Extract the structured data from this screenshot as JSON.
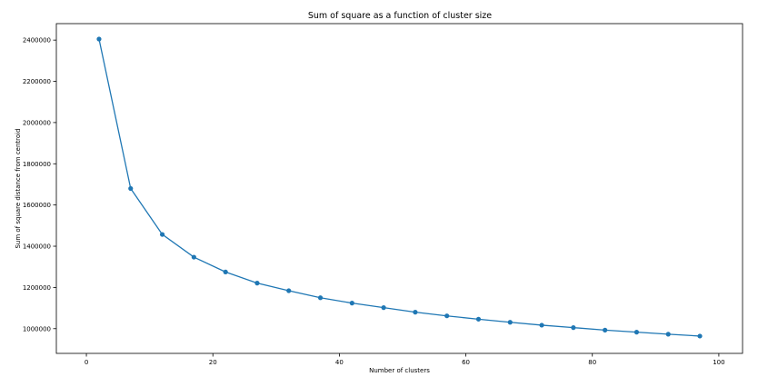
{
  "chart_data": {
    "type": "line",
    "title": "Sum of square as a function of cluster size",
    "xlabel": "Number of clusters",
    "ylabel": "Sum of square distance from centroid",
    "xlim": [
      -4.75,
      103.75
    ],
    "ylim": [
      880000,
      2480000
    ],
    "xticks": [
      0,
      20,
      40,
      60,
      80,
      100
    ],
    "yticks": [
      1000000,
      1200000,
      1400000,
      1600000,
      1800000,
      2000000,
      2200000,
      2400000
    ],
    "xtick_labels": [
      "0",
      "20",
      "40",
      "60",
      "80",
      "100"
    ],
    "ytick_labels": [
      "1000000",
      "1200000",
      "1400000",
      "1600000",
      "1800000",
      "2000000",
      "2200000",
      "2400000"
    ],
    "grid": false,
    "series_color": "#1f77b4",
    "marker": "circle",
    "x": [
      2,
      7,
      12,
      17,
      22,
      27,
      32,
      37,
      42,
      47,
      52,
      57,
      62,
      67,
      72,
      77,
      82,
      87,
      92,
      97
    ],
    "y": [
      2405000,
      1680000,
      1457000,
      1347000,
      1275000,
      1221000,
      1184000,
      1150000,
      1124000,
      1102000,
      1080000,
      1062000,
      1046000,
      1031000,
      1017000,
      1005000,
      993000,
      983000,
      973000,
      964000
    ]
  }
}
